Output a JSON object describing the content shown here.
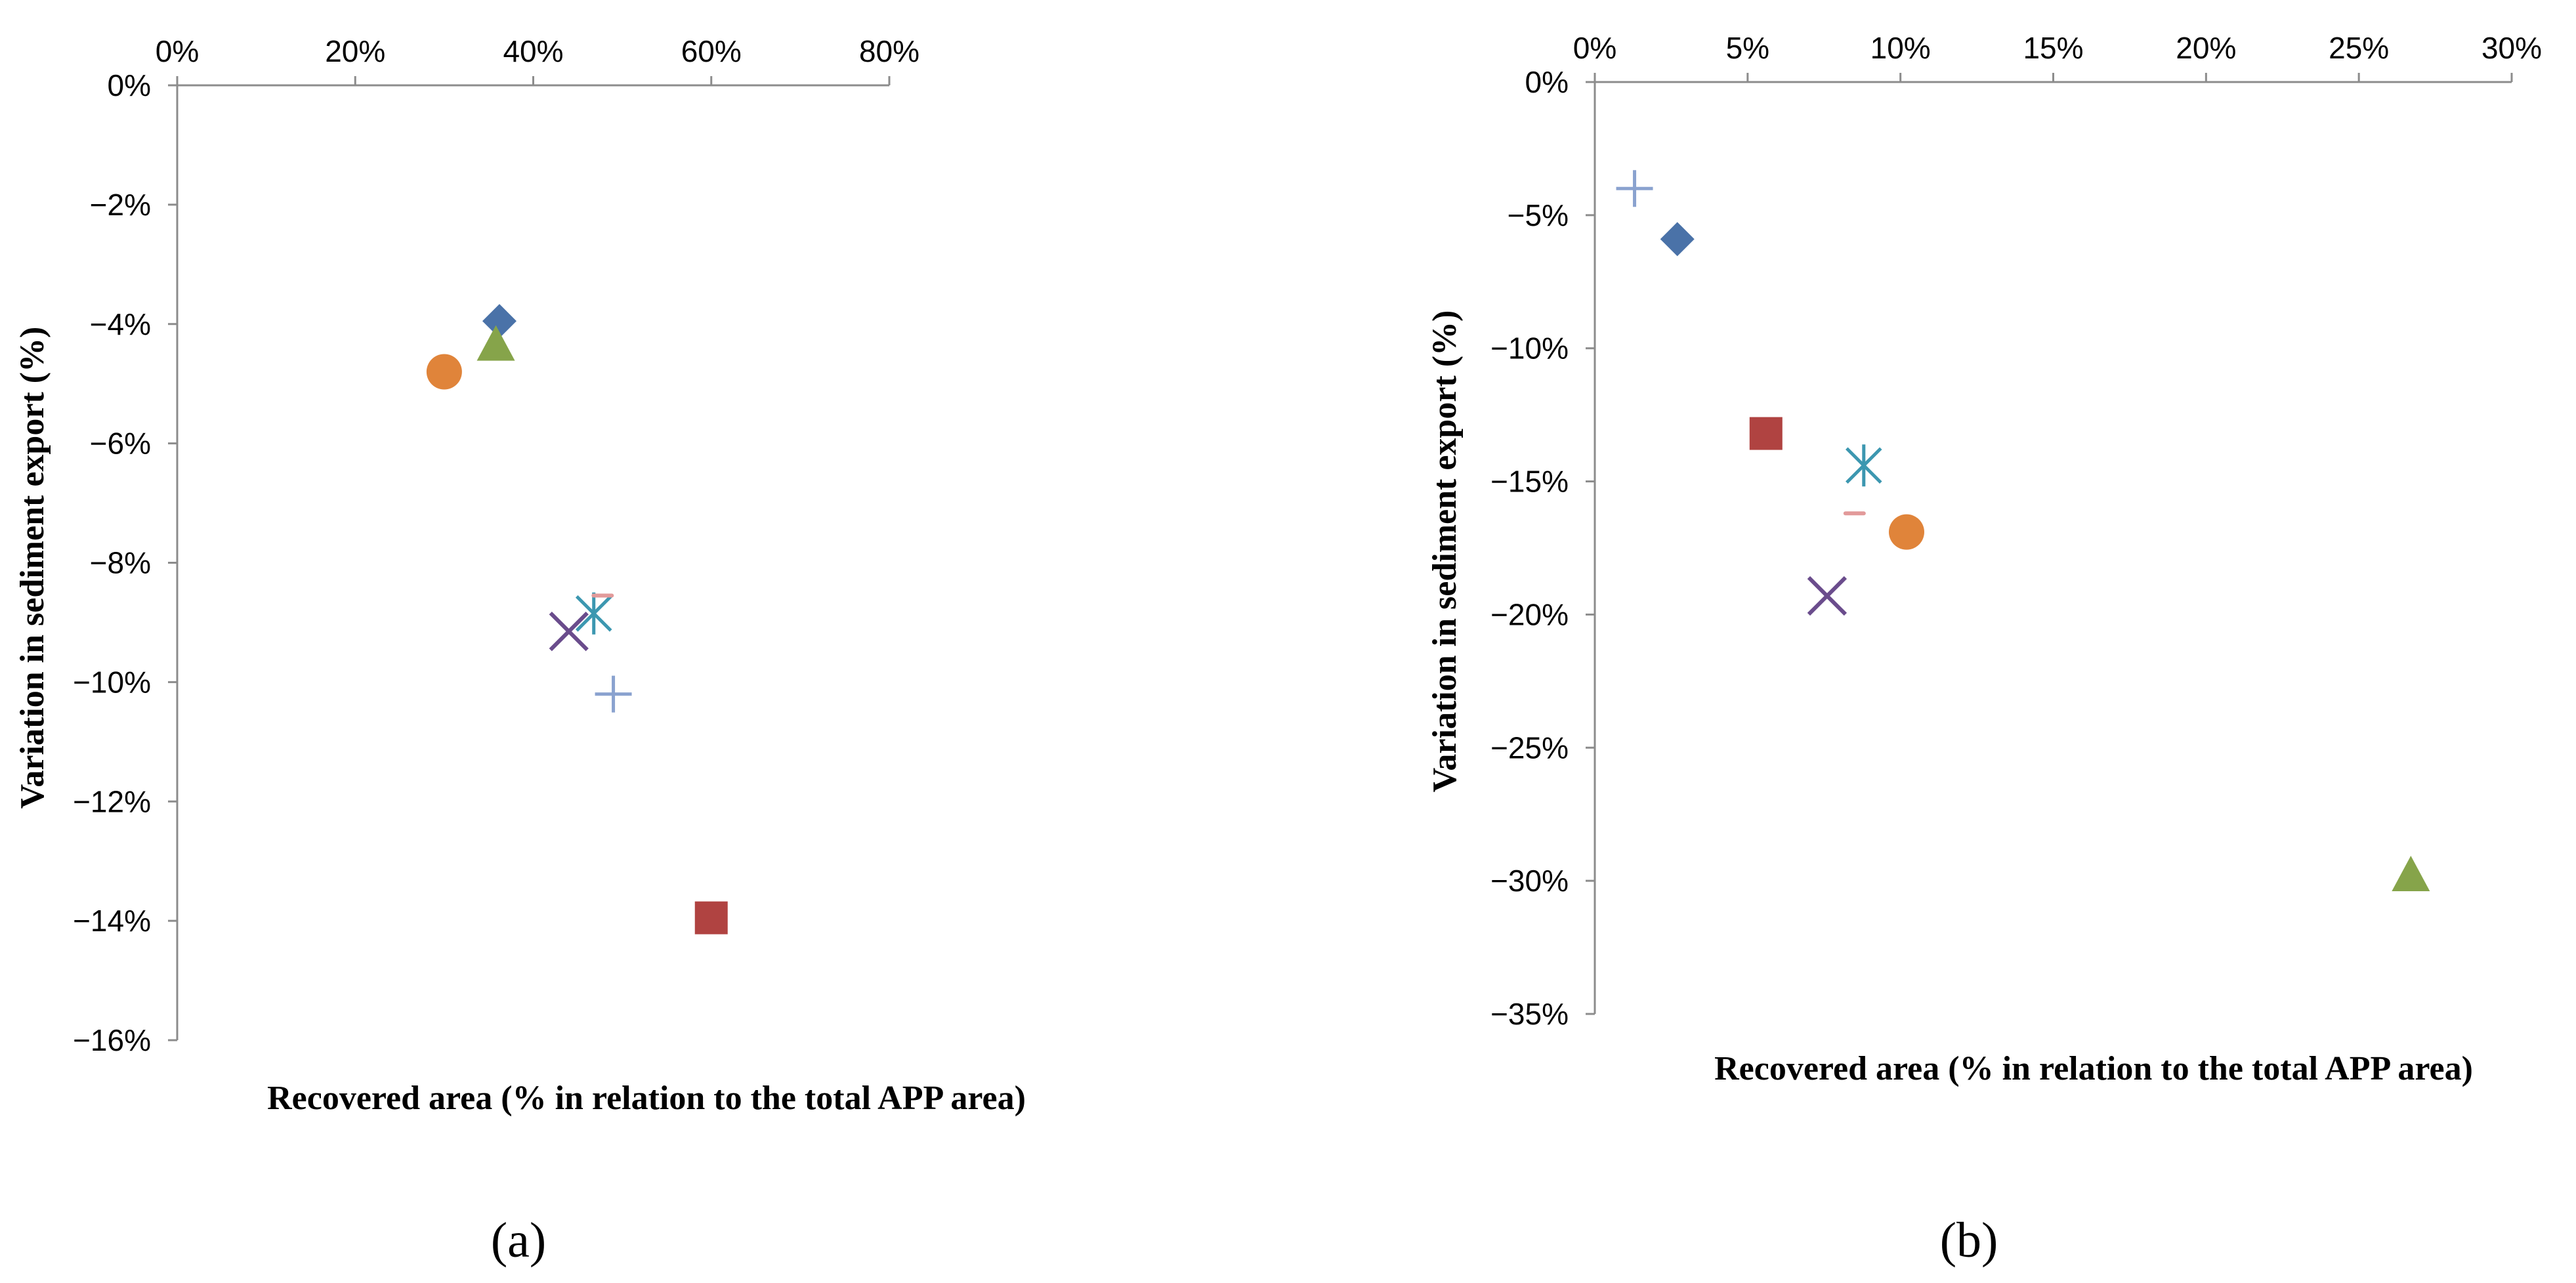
{
  "chart_data": [
    {
      "type": "scatter",
      "panel_label": "(a)",
      "xlabel": "Recovered area (% in relation to the total APP area)",
      "ylabel": "Variation in sediment export (%)",
      "xlim": [
        0,
        80
      ],
      "ylim": [
        -16,
        0
      ],
      "x_ticks": [
        0,
        20,
        40,
        60,
        80
      ],
      "y_ticks": [
        0,
        -2,
        -4,
        -6,
        -8,
        -10,
        -12,
        -14,
        -16
      ],
      "x_tick_labels": [
        "0%",
        "20%",
        "40%",
        "60%",
        "80%"
      ],
      "y_tick_labels": [
        "0%",
        "−2%",
        "−4%",
        "−6%",
        "−8%",
        "−10%",
        "−12%",
        "−14%",
        "−16%"
      ],
      "series": [
        {
          "marker": "diamond",
          "color": "#4a72a8",
          "x": 36.2,
          "y": -3.95
        },
        {
          "marker": "square",
          "color": "#b04341",
          "x": 60.0,
          "y": -13.95
        },
        {
          "marker": "triangle",
          "color": "#86a44a",
          "x": 35.8,
          "y": -4.35
        },
        {
          "marker": "x",
          "color": "#6a4c8c",
          "x": 44.0,
          "y": -9.15
        },
        {
          "marker": "asterisk",
          "color": "#3c97b0",
          "x": 46.8,
          "y": -8.85
        },
        {
          "marker": "circle",
          "color": "#e0843a",
          "x": 30.0,
          "y": -4.8
        },
        {
          "marker": "plus",
          "color": "#8aa2cf",
          "x": 49.0,
          "y": -10.2
        },
        {
          "marker": "dash",
          "color": "#e29a9a",
          "x": 47.8,
          "y": -8.55
        }
      ]
    },
    {
      "type": "scatter",
      "panel_label": "(b)",
      "xlabel": "Recovered area (% in relation to the total APP area)",
      "ylabel": "Variation in sediment export (%)",
      "xlim": [
        0,
        30
      ],
      "ylim": [
        -35,
        0
      ],
      "x_ticks": [
        0,
        5,
        10,
        15,
        20,
        25,
        30
      ],
      "y_ticks": [
        0,
        -5,
        -10,
        -15,
        -20,
        -25,
        -30,
        -35
      ],
      "x_tick_labels": [
        "0%",
        "5%",
        "10%",
        "15%",
        "20%",
        "25%",
        "30%"
      ],
      "y_tick_labels": [
        "0%",
        "−5%",
        "−10%",
        "−15%",
        "−20%",
        "−25%",
        "−30%",
        "−35%"
      ],
      "series": [
        {
          "marker": "diamond",
          "color": "#4a72a8",
          "x": 2.7,
          "y": -5.9
        },
        {
          "marker": "square",
          "color": "#b04341",
          "x": 5.6,
          "y": -13.2
        },
        {
          "marker": "triangle",
          "color": "#86a44a",
          "x": 26.7,
          "y": -29.8
        },
        {
          "marker": "x",
          "color": "#6a4c8c",
          "x": 7.6,
          "y": -19.3
        },
        {
          "marker": "asterisk",
          "color": "#3c97b0",
          "x": 8.8,
          "y": -14.4
        },
        {
          "marker": "circle",
          "color": "#e0843a",
          "x": 10.2,
          "y": -16.9
        },
        {
          "marker": "plus",
          "color": "#8aa2cf",
          "x": 1.3,
          "y": -4.0
        },
        {
          "marker": "dash",
          "color": "#e29a9a",
          "x": 8.5,
          "y": -16.2
        }
      ]
    }
  ]
}
